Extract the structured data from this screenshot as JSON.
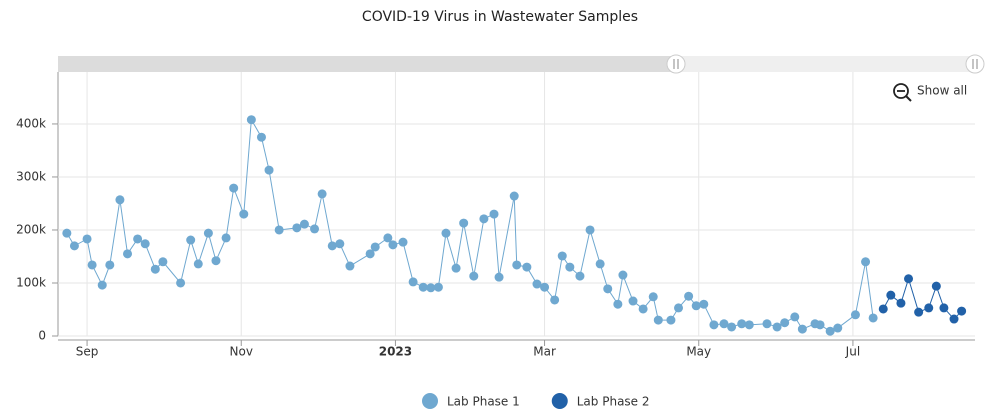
{
  "chart_data": {
    "type": "line",
    "title": "COVID-19 Virus in Wastewater Samples",
    "reset_label": "Show all",
    "xlim": [
      -11.5,
      351.3
    ],
    "xticks": [
      {
        "value": 0,
        "label": "Sep"
      },
      {
        "value": 61,
        "label": "Nov"
      },
      {
        "value": 122,
        "label": "2023"
      },
      {
        "value": 181,
        "label": "Mar"
      },
      {
        "value": 242,
        "label": "May"
      },
      {
        "value": 303,
        "label": "Jul"
      }
    ],
    "ylim": [
      0,
      498000
    ],
    "yticks": [
      0,
      {
        "value": 100000,
        "label": "100k"
      },
      {
        "value": 200000,
        "label": "200k"
      },
      {
        "value": 300000,
        "label": "300k"
      },
      {
        "value": 400000,
        "label": "400k"
      }
    ],
    "grid": true,
    "series": [
      {
        "name": "Lab Phase 1",
        "color": "#6fa8d0",
        "x": [
          -8,
          -5,
          0,
          2,
          6,
          9,
          13,
          16,
          20,
          23,
          27,
          30,
          37,
          41,
          44,
          48,
          51,
          55,
          58,
          62,
          65,
          69,
          72,
          76,
          83,
          86,
          90,
          93,
          97,
          100,
          104,
          112,
          114,
          119,
          121,
          125,
          129,
          133,
          136,
          139,
          142,
          146,
          149,
          153,
          157,
          161,
          163,
          169,
          170,
          174,
          178,
          181,
          185,
          188,
          191,
          195,
          199,
          203,
          206,
          210,
          212,
          216,
          220,
          224,
          226,
          231,
          234,
          238,
          241,
          244,
          248,
          252,
          255,
          259,
          262,
          269,
          273,
          276,
          280,
          283,
          288,
          290,
          294,
          297,
          304,
          308,
          311
        ],
        "values": [
          194000,
          170000,
          183000,
          134000,
          96000,
          134000,
          257000,
          155000,
          183000,
          174000,
          126000,
          140000,
          100000,
          181000,
          136000,
          194000,
          142000,
          185000,
          279000,
          230000,
          408000,
          375000,
          313000,
          200000,
          204000,
          211000,
          202000,
          268000,
          170000,
          174000,
          132000,
          155000,
          168000,
          185000,
          172000,
          177000,
          102000,
          92000,
          91000,
          92000,
          194000,
          128000,
          213000,
          113000,
          221000,
          230000,
          111000,
          264000,
          134000,
          130000,
          98000,
          92000,
          68000,
          151000,
          130000,
          113000,
          200000,
          136000,
          89000,
          60000,
          115000,
          66000,
          51000,
          74000,
          30000,
          30000,
          53000,
          75000,
          57000,
          60000,
          21000,
          23000,
          17000,
          23000,
          21000,
          23000,
          17000,
          25000,
          36000,
          13000,
          23000,
          21000,
          9000,
          15000,
          40000,
          140000,
          34000
        ]
      },
      {
        "name": "Lab Phase 2",
        "color": "#2161a8",
        "x": [
          315,
          318,
          322,
          325,
          329,
          333,
          336,
          339,
          343,
          346
        ],
        "values": [
          51000,
          77000,
          62000,
          108000,
          45000,
          53000,
          94000,
          53000,
          32000,
          47000
        ]
      }
    ]
  }
}
